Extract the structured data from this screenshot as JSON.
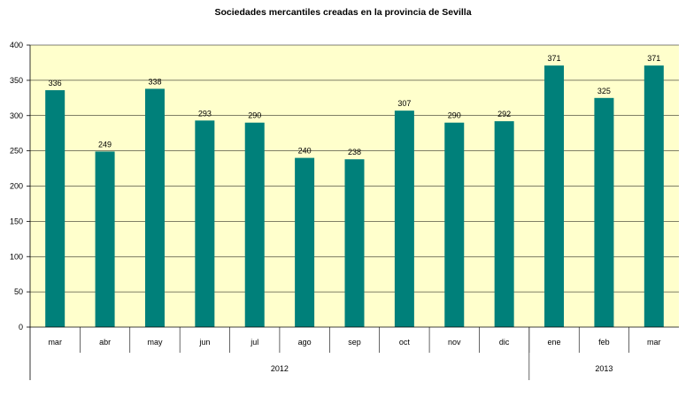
{
  "chart_data": {
    "type": "bar",
    "title": "Sociedades mercantiles creadas en la provincia de Sevilla",
    "categories": [
      "mar",
      "abr",
      "may",
      "jun",
      "jul",
      "ago",
      "sep",
      "oct",
      "nov",
      "dic",
      "ene",
      "feb",
      "mar"
    ],
    "groups": [
      {
        "label": "2012",
        "start": 0,
        "end": 9
      },
      {
        "label": "2013",
        "start": 10,
        "end": 12
      }
    ],
    "values": [
      336,
      249,
      338,
      293,
      290,
      240,
      238,
      307,
      290,
      292,
      371,
      325,
      371
    ],
    "ylim": [
      0,
      400
    ],
    "yticks": [
      0,
      50,
      100,
      150,
      200,
      250,
      300,
      350,
      400
    ],
    "xlabel": "",
    "ylabel": "",
    "colors": {
      "bar": "#00807A",
      "plot_background": "#FFFFCC",
      "axis": "#000000",
      "gridline": "#000000"
    }
  }
}
